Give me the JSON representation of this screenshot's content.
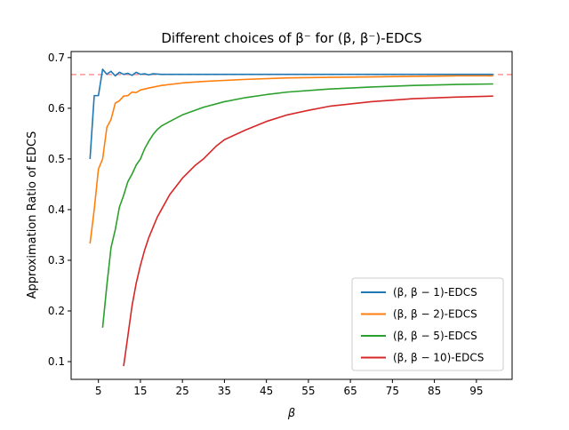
{
  "chart_data": {
    "type": "line",
    "title": "Different choices of β⁻ for (β, β⁻)-EDCS",
    "xlabel": "β",
    "ylabel": "Approximation Ratio of EDCS",
    "xlim": [
      -1.5,
      103.5
    ],
    "ylim": [
      0.065,
      0.712
    ],
    "xticks": [
      5,
      15,
      25,
      35,
      45,
      55,
      65,
      75,
      85,
      95
    ],
    "yticks": [
      0.1,
      0.2,
      0.3,
      0.4,
      0.5,
      0.6,
      0.7
    ],
    "ytick_labels": [
      "0.1",
      "0.2",
      "0.3",
      "0.4",
      "0.5",
      "0.6",
      "0.7"
    ],
    "grid": false,
    "legend_position": "lower-right",
    "reference_line": {
      "y": 0.6667,
      "style": "dashed",
      "color": "#ff9896"
    },
    "series": [
      {
        "name": "(β, β − 1)-EDCS",
        "color": "#1f77b4",
        "x": [
          3,
          4,
          5,
          6,
          7,
          8,
          9,
          10,
          11,
          12,
          13,
          14,
          15,
          16,
          17,
          18,
          20,
          25,
          30,
          40,
          50,
          60,
          70,
          80,
          90,
          99
        ],
        "y": [
          0.5,
          0.625,
          0.625,
          0.677,
          0.667,
          0.673,
          0.664,
          0.671,
          0.667,
          0.669,
          0.665,
          0.671,
          0.667,
          0.668,
          0.666,
          0.668,
          0.667,
          0.667,
          0.667,
          0.667,
          0.667,
          0.667,
          0.667,
          0.667,
          0.667,
          0.667
        ]
      },
      {
        "name": "(β, β − 2)-EDCS",
        "color": "#ff7f0e",
        "x": [
          3,
          4,
          5,
          6,
          7,
          8,
          9,
          10,
          11,
          12,
          13,
          14,
          15,
          17,
          20,
          25,
          30,
          40,
          50,
          60,
          70,
          80,
          90,
          99
        ],
        "y": [
          0.333,
          0.4,
          0.48,
          0.5,
          0.562,
          0.578,
          0.61,
          0.615,
          0.624,
          0.625,
          0.632,
          0.631,
          0.636,
          0.64,
          0.645,
          0.65,
          0.653,
          0.657,
          0.66,
          0.661,
          0.662,
          0.663,
          0.664,
          0.664
        ]
      },
      {
        "name": "(β, β − 5)-EDCS",
        "color": "#2ca02c",
        "x": [
          6,
          7,
          8,
          9,
          10,
          11,
          12,
          13,
          14,
          15,
          16,
          17,
          18,
          19,
          20,
          22,
          25,
          30,
          35,
          40,
          45,
          50,
          60,
          70,
          80,
          90,
          99
        ],
        "y": [
          0.167,
          0.25,
          0.325,
          0.36,
          0.405,
          0.428,
          0.455,
          0.47,
          0.488,
          0.5,
          0.52,
          0.535,
          0.548,
          0.558,
          0.565,
          0.574,
          0.587,
          0.602,
          0.613,
          0.621,
          0.627,
          0.632,
          0.638,
          0.642,
          0.645,
          0.647,
          0.648
        ]
      },
      {
        "name": "(β, β − 10)-EDCS",
        "color": "#d62728",
        "x": [
          11,
          12,
          13,
          14,
          15,
          16,
          17,
          18,
          19,
          20,
          22,
          25,
          28,
          30,
          33,
          35,
          40,
          45,
          50,
          55,
          60,
          70,
          80,
          90,
          99
        ],
        "y": [
          0.091,
          0.15,
          0.21,
          0.255,
          0.29,
          0.32,
          0.345,
          0.365,
          0.385,
          0.4,
          0.43,
          0.462,
          0.487,
          0.5,
          0.525,
          0.538,
          0.557,
          0.574,
          0.587,
          0.596,
          0.604,
          0.613,
          0.619,
          0.622,
          0.624
        ]
      }
    ]
  }
}
